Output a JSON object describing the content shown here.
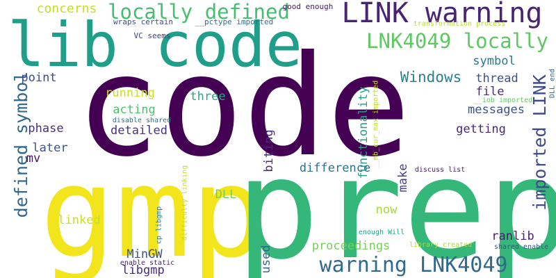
{
  "palette": {
    "background": "#ffffff",
    "dark-purple": "#440154",
    "purple": "#482475",
    "indigo": "#414487",
    "blue": "#355f8d",
    "steel-blue": "#2a788e",
    "teal": "#21918c",
    "green-teal": "#22a884",
    "green": "#44bf70",
    "light-green": "#7ad151",
    "yellow-green": "#bddf26",
    "yellow": "#f3e51b"
  },
  "words": [
    {
      "text": "code",
      "color": "#440154"
    },
    {
      "text": "gmp",
      "color": "#f3e51b"
    },
    {
      "text": "prep",
      "color": "#35b779"
    },
    {
      "text": "lib code",
      "color": "#1f9e89"
    },
    {
      "text": "LINK warning",
      "color": "#482475"
    },
    {
      "text": "locally defined",
      "color": "#44bf70"
    },
    {
      "text": "LNK4049 locally",
      "color": "#5ec962"
    },
    {
      "text": "warning LNK4049",
      "color": "#31688e"
    },
    {
      "text": "defined symbol",
      "color": "#31688e"
    },
    {
      "text": "imported LINK",
      "color": "#3e4a89"
    },
    {
      "text": "Windows",
      "color": "#26828e"
    },
    {
      "text": "symbol",
      "color": "#2a788e"
    },
    {
      "text": "concerns",
      "color": "#c2df23"
    },
    {
      "text": "thread",
      "color": "#3b528b"
    },
    {
      "text": "point",
      "color": "#3e4a89"
    },
    {
      "text": "running",
      "color": "#c8e020"
    },
    {
      "text": "three",
      "color": "#25ab82"
    },
    {
      "text": "file",
      "color": "#472d7b"
    },
    {
      "text": "acting",
      "color": "#4ac16d"
    },
    {
      "text": "messages",
      "color": "#3b528b"
    },
    {
      "text": "detailed",
      "color": "#46337f"
    },
    {
      "text": "phase",
      "color": "#46327e"
    },
    {
      "text": "getting",
      "color": "#482878"
    },
    {
      "text": "functionality",
      "color": "#20a486"
    },
    {
      "text": "later",
      "color": "#3b528b"
    },
    {
      "text": "biting",
      "color": "#472a7a"
    },
    {
      "text": "mv",
      "color": "#471164"
    },
    {
      "text": "difference",
      "color": "#2c728e"
    },
    {
      "text": "make",
      "color": "#424086"
    },
    {
      "text": "DLL",
      "color": "#7ad151"
    },
    {
      "text": "now",
      "color": "#a5db36"
    },
    {
      "text": "linked",
      "color": "#c8e020"
    },
    {
      "text": "ranlib",
      "color": "#481b6d"
    },
    {
      "text": "MinGW",
      "color": "#3a548c"
    },
    {
      "text": "proceedings",
      "color": "#75d054"
    },
    {
      "text": "libgmp",
      "color": "#472c7a"
    },
    {
      "text": "used",
      "color": "#31688e"
    },
    {
      "text": "good enough",
      "color": "#481769"
    },
    {
      "text": "wraps certain",
      "color": "#3e4c8a"
    },
    {
      "text": "__pctype imported",
      "color": "#2e6f8e"
    },
    {
      "text": "VC seems",
      "color": "#414487"
    },
    {
      "text": "DLL end",
      "color": "#34618d"
    },
    {
      "text": "transformation process",
      "color": "#b5de2b"
    },
    {
      "text": "__iob imported",
      "color": "#5ec962"
    },
    {
      "text": "__mb_cur_max imported",
      "color": "#bddf26"
    },
    {
      "text": "disable shared",
      "color": "#2c728e"
    },
    {
      "text": "cp libgmp",
      "color": "#26818e"
    },
    {
      "text": "difficulty linking",
      "color": "#bddf26"
    },
    {
      "text": "discuss list",
      "color": "#482173"
    },
    {
      "text": "enough Will",
      "color": "#1fa088"
    },
    {
      "text": "library created",
      "color": "#a8db34"
    },
    {
      "text": "shared enable",
      "color": "#3b528b"
    },
    {
      "text": "enable static",
      "color": "#482071"
    }
  ]
}
